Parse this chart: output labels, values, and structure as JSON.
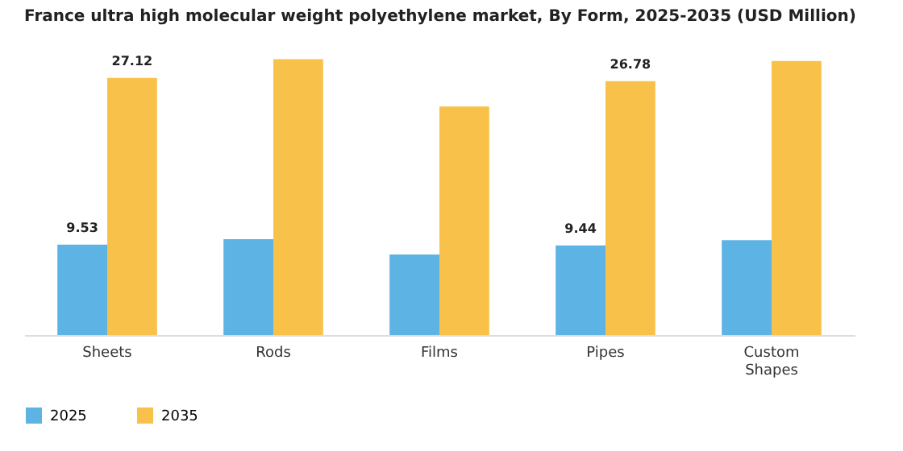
{
  "chart_data": {
    "type": "bar",
    "title": "France ultra high molecular weight polyethylene market, By Form, 2025-2035 (USD Million)",
    "categories": [
      "Sheets",
      "Rods",
      "Films",
      "Pipes",
      "Custom Shapes"
    ],
    "series": [
      {
        "name": "2025",
        "color": "#5db3e4",
        "values": [
          9.53,
          10.1,
          8.5,
          9.44,
          10.0
        ],
        "value_labels": [
          "9.53",
          null,
          null,
          "9.44",
          null
        ]
      },
      {
        "name": "2035",
        "color": "#f8c24a",
        "values": [
          27.12,
          29.1,
          24.1,
          26.78,
          28.9
        ],
        "value_labels": [
          "27.12",
          null,
          null,
          "26.78",
          null
        ]
      }
    ],
    "legend": "bottom"
  }
}
